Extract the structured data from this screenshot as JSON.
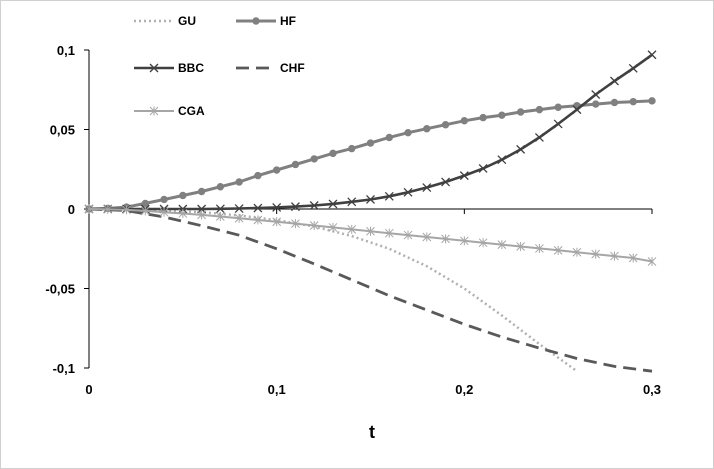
{
  "chart_data": {
    "type": "line",
    "title": "",
    "xlabel": "t",
    "ylabel": "",
    "xlim": [
      0,
      0.3
    ],
    "ylim": [
      -0.1,
      0.1
    ],
    "x_ticks": [
      "0",
      "0,1",
      "0,2",
      "0,3"
    ],
    "y_ticks": [
      "0,1",
      "0,05",
      "0",
      "-0,05",
      "-0,1"
    ],
    "grid": false,
    "legend_position": "top-left",
    "series": [
      {
        "name": "GU",
        "style": "dotted",
        "color": "#b0b0b0",
        "marker": "none",
        "x": [
          0,
          0.02,
          0.04,
          0.06,
          0.08,
          0.1,
          0.12,
          0.14,
          0.16,
          0.18,
          0.2,
          0.22,
          0.24,
          0.26
        ],
        "y": [
          0,
          -0.0005,
          -0.001,
          -0.002,
          -0.004,
          -0.007,
          -0.011,
          -0.017,
          -0.025,
          -0.036,
          -0.05,
          -0.067,
          -0.085,
          -0.102
        ]
      },
      {
        "name": "HF",
        "style": "solid",
        "color": "#808080",
        "marker": "circle",
        "x": [
          0,
          0.01,
          0.02,
          0.03,
          0.04,
          0.05,
          0.06,
          0.07,
          0.08,
          0.09,
          0.1,
          0.11,
          0.12,
          0.13,
          0.14,
          0.15,
          0.16,
          0.17,
          0.18,
          0.19,
          0.2,
          0.21,
          0.22,
          0.23,
          0.24,
          0.25,
          0.26,
          0.27,
          0.28,
          0.29,
          0.3
        ],
        "y": [
          0,
          0.0004,
          0.0012,
          0.0035,
          0.006,
          0.0085,
          0.011,
          0.014,
          0.017,
          0.021,
          0.0245,
          0.028,
          0.0315,
          0.035,
          0.038,
          0.0415,
          0.045,
          0.048,
          0.0505,
          0.053,
          0.0555,
          0.0575,
          0.059,
          0.061,
          0.0625,
          0.064,
          0.065,
          0.066,
          0.067,
          0.0675,
          0.068
        ]
      },
      {
        "name": "BBC",
        "style": "solid",
        "color": "#404040",
        "marker": "x",
        "x": [
          0,
          0.01,
          0.02,
          0.03,
          0.04,
          0.05,
          0.06,
          0.07,
          0.08,
          0.09,
          0.1,
          0.11,
          0.12,
          0.13,
          0.14,
          0.15,
          0.16,
          0.17,
          0.18,
          0.19,
          0.2,
          0.21,
          0.22,
          0.23,
          0.24,
          0.25,
          0.26,
          0.27,
          0.28,
          0.29,
          0.3
        ],
        "y": [
          0,
          0,
          0,
          0,
          0,
          0,
          0,
          0.0001,
          0.0003,
          0.0006,
          0.001,
          0.0015,
          0.0022,
          0.0032,
          0.0045,
          0.006,
          0.008,
          0.0105,
          0.0135,
          0.017,
          0.021,
          0.0255,
          0.031,
          0.0375,
          0.045,
          0.0535,
          0.0625,
          0.072,
          0.0805,
          0.0885,
          0.097
        ]
      },
      {
        "name": "CHF",
        "style": "dashed",
        "color": "#595959",
        "marker": "none",
        "x": [
          0,
          0.02,
          0.04,
          0.06,
          0.08,
          0.1,
          0.12,
          0.14,
          0.16,
          0.18,
          0.2,
          0.22,
          0.24,
          0.26,
          0.28,
          0.3
        ],
        "y": [
          0,
          -0.001,
          -0.005,
          -0.0105,
          -0.0165,
          -0.025,
          -0.0345,
          -0.0445,
          -0.0545,
          -0.0635,
          -0.0725,
          -0.0805,
          -0.0875,
          -0.094,
          -0.099,
          -0.102
        ]
      },
      {
        "name": "CGA",
        "style": "solid",
        "color": "#a6a6a6",
        "marker": "star",
        "x": [
          0,
          0.01,
          0.02,
          0.03,
          0.04,
          0.05,
          0.06,
          0.07,
          0.08,
          0.09,
          0.1,
          0.11,
          0.12,
          0.13,
          0.14,
          0.15,
          0.16,
          0.17,
          0.18,
          0.19,
          0.2,
          0.21,
          0.22,
          0.23,
          0.24,
          0.25,
          0.26,
          0.27,
          0.28,
          0.29,
          0.3
        ],
        "y": [
          0,
          -0.0002,
          -0.0005,
          -0.0012,
          -0.002,
          -0.0028,
          -0.0037,
          -0.0047,
          -0.0058,
          -0.0069,
          -0.008,
          -0.0092,
          -0.0104,
          -0.0116,
          -0.0128,
          -0.014,
          -0.0152,
          -0.0164,
          -0.0176,
          -0.0188,
          -0.02,
          -0.0212,
          -0.0224,
          -0.0236,
          -0.0248,
          -0.026,
          -0.0272,
          -0.0284,
          -0.0296,
          -0.0308,
          -0.033
        ]
      }
    ]
  }
}
